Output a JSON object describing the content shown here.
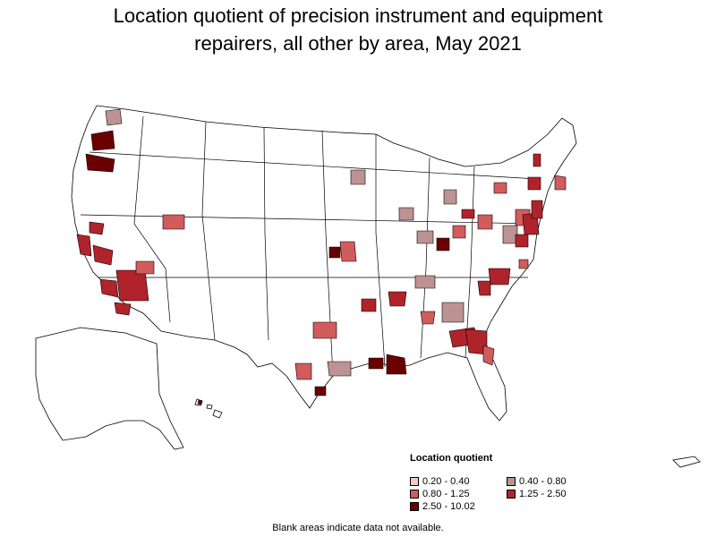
{
  "title_line1": "Location quotient of precision instrument and equipment",
  "title_line2": "repairers, all other by area, May 2021",
  "legend": {
    "title": "Location quotient",
    "items": [
      {
        "label": "0.20 - 0.40",
        "color": "#f4c7c7"
      },
      {
        "label": "0.40 - 0.80",
        "color": "#bd9292"
      },
      {
        "label": "0.80 - 1.25",
        "color": "#d25b5b"
      },
      {
        "label": "1.25 - 2.50",
        "color": "#b0232b"
      },
      {
        "label": "2.50 - 10.02",
        "color": "#6b0000"
      }
    ]
  },
  "footnote": "Blank areas indicate data not available.",
  "colors": {
    "outline": "#000000",
    "blank": "#ffffff",
    "tier_low": "#f4c7c7",
    "tier_mid_low": "#bd9292",
    "tier_mid": "#d25b5b",
    "tier_high": "#b0232b",
    "tier_top": "#6b0000"
  }
}
